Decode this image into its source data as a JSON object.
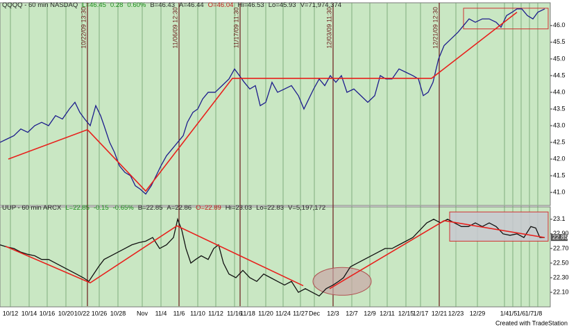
{
  "chart_data": [
    {
      "type": "line",
      "title": "QQQQ - 60 min  NASDAQ",
      "header": [
        "L=46.45",
        "0.28",
        "0.60%",
        "B=46.43",
        "A=46.44",
        "O=46.04",
        "Hi=46.53",
        "Lo=45.93",
        "V=71,974,374"
      ],
      "color": "#1c1c8c",
      "xlim": [
        0,
        793
      ],
      "ylim": [
        40.67,
        46.6
      ],
      "yticks": [
        {
          "value": 46,
          "label": "46.0"
        },
        {
          "value": 45.5,
          "label": "45.5"
        },
        {
          "value": 45,
          "label": "45.0"
        },
        {
          "value": 44.5,
          "label": "44.5"
        },
        {
          "value": 44,
          "label": "44.0"
        },
        {
          "value": 43.5,
          "label": "43.5"
        },
        {
          "value": 43,
          "label": "43.0"
        },
        {
          "value": 42.5,
          "label": "42.5"
        },
        {
          "value": 42,
          "label": "42.0"
        },
        {
          "value": 41.5,
          "label": "41.5"
        },
        {
          "value": 41,
          "label": "41.0"
        }
      ],
      "x": [
        0,
        10,
        20,
        30,
        40,
        50,
        60,
        70,
        80,
        90,
        100,
        108,
        115,
        122,
        130,
        138,
        145,
        150,
        158,
        165,
        172,
        180,
        188,
        195,
        202,
        210,
        218,
        225,
        232,
        240,
        248,
        256,
        264,
        270,
        278,
        285,
        292,
        300,
        310,
        320,
        330,
        338,
        345,
        352,
        360,
        368,
        375,
        383,
        392,
        400,
        410,
        420,
        430,
        438,
        445,
        452,
        460,
        468,
        476,
        484,
        492,
        500,
        510,
        520,
        530,
        540,
        548,
        556,
        565,
        575,
        585,
        595,
        603,
        610,
        617,
        624,
        632,
        640,
        650,
        660,
        668,
        676,
        685,
        695,
        705,
        715,
        722,
        730,
        738,
        745,
        752,
        760,
        768,
        775,
        785
      ],
      "values": [
        42.5,
        42.6,
        42.7,
        42.9,
        42.8,
        43.0,
        43.1,
        43.0,
        43.3,
        43.2,
        43.5,
        43.7,
        43.4,
        43.2,
        43.0,
        43.6,
        43.3,
        43.0,
        42.5,
        42.2,
        41.8,
        41.6,
        41.5,
        41.2,
        41.1,
        40.95,
        41.2,
        41.5,
        41.8,
        42.1,
        42.3,
        42.5,
        42.7,
        43.1,
        43.4,
        43.5,
        43.8,
        44.0,
        44.0,
        44.2,
        44.4,
        44.7,
        44.5,
        44.3,
        44.1,
        44.2,
        43.6,
        43.7,
        44.3,
        44.0,
        44.1,
        44.2,
        43.9,
        43.5,
        43.8,
        44.1,
        44.4,
        44.2,
        44.5,
        44.3,
        44.5,
        44.0,
        44.1,
        43.9,
        43.7,
        43.9,
        44.5,
        44.4,
        44.4,
        44.7,
        44.6,
        44.5,
        44.4,
        43.9,
        44.0,
        44.3,
        45.0,
        45.4,
        45.6,
        45.8,
        46.0,
        46.2,
        46.1,
        46.2,
        46.2,
        46.1,
        45.95,
        46.3,
        46.4,
        46.5,
        46.5,
        46.3,
        46.2,
        46.4,
        46.5
      ],
      "trendlines": [
        {
          "color": "#e8201c",
          "x": [
            12,
            126,
            210,
            335,
            622,
            745
          ],
          "values": [
            42.0,
            42.88,
            41.04,
            44.42,
            44.42,
            46.4
          ]
        }
      ],
      "boxes": [
        {
          "color": "#d03030",
          "x": [
            668,
            790
          ],
          "y": [
            45.9,
            46.52
          ]
        }
      ],
      "events": [
        {
          "x": 126,
          "label": "10/22/09 13:30"
        },
        {
          "x": 258,
          "label": "11/06/09 12:30"
        },
        {
          "x": 346,
          "label": "11/17/09 11:30"
        },
        {
          "x": 480,
          "label": "12/03/09 11:30"
        },
        {
          "x": 633,
          "label": "12/21/09 12:30"
        }
      ]
    },
    {
      "type": "line",
      "title": "UUP - 60 min  ARCX",
      "header": [
        "L=22.85",
        "-0.15",
        "-0.65%",
        "B=22.85",
        "A=22.86",
        "O=22.89",
        "Hi=23.03",
        "Lo=22.83",
        "V=5,197,172"
      ],
      "color": "#111111",
      "xlim": [
        0,
        793
      ],
      "ylim": [
        21.92,
        23.25
      ],
      "last_price": 22.85,
      "yticks": [
        23.1,
        {
          "value": 22.9,
          "label": "22.90"
        },
        {
          "value": 22.7,
          "label": "22.70"
        },
        {
          "value": 22.5,
          "label": "22.50"
        },
        {
          "value": 22.3,
          "label": "22.30"
        },
        {
          "value": 22.1,
          "label": "22.10"
        }
      ],
      "xticks": [
        {
          "value": 15,
          "label": "10/12"
        },
        {
          "value": 42,
          "label": "10/14"
        },
        {
          "value": 68,
          "label": "10/16"
        },
        {
          "value": 95,
          "label": "10/20"
        },
        {
          "value": 118,
          "label": "10/22"
        },
        {
          "value": 143,
          "label": "10/26"
        },
        {
          "value": 170,
          "label": "10/28"
        },
        {
          "value": 205,
          "label": "Nov"
        },
        {
          "value": 232,
          "label": "11/4"
        },
        {
          "value": 258,
          "label": "11/6"
        },
        {
          "value": 285,
          "label": "11/10"
        },
        {
          "value": 311,
          "label": "11/12"
        },
        {
          "value": 338,
          "label": "11/16"
        },
        {
          "value": 357,
          "label": "11/18"
        },
        {
          "value": 383,
          "label": "11/20"
        },
        {
          "value": 408,
          "label": "11/24"
        },
        {
          "value": 433,
          "label": "11/27"
        },
        {
          "value": 453,
          "label": "Dec"
        },
        {
          "value": 480,
          "label": "12/3"
        },
        {
          "value": 507,
          "label": "12/7"
        },
        {
          "value": 533,
          "label": "12/9"
        },
        {
          "value": 558,
          "label": "12/11"
        },
        {
          "value": 585,
          "label": "12/15"
        },
        {
          "value": 606,
          "label": "12/17"
        },
        {
          "value": 633,
          "label": "12/21"
        },
        {
          "value": 657,
          "label": "12/23"
        },
        {
          "value": 688,
          "label": "12/29"
        },
        {
          "value": 727,
          "label": "1/4"
        },
        {
          "value": 739,
          "label": "1/5"
        },
        {
          "value": 751,
          "label": "1/6"
        },
        {
          "value": 763,
          "label": "1/7"
        },
        {
          "value": 775,
          "label": "1/8"
        }
      ],
      "x": [
        0,
        10,
        20,
        30,
        40,
        50,
        60,
        70,
        80,
        90,
        100,
        110,
        120,
        128,
        135,
        142,
        150,
        160,
        170,
        180,
        190,
        200,
        210,
        220,
        230,
        240,
        250,
        256,
        262,
        268,
        275,
        282,
        290,
        300,
        308,
        315,
        322,
        330,
        340,
        350,
        360,
        370,
        380,
        390,
        400,
        410,
        420,
        430,
        440,
        450,
        460,
        470,
        480,
        488,
        495,
        505,
        515,
        525,
        535,
        545,
        555,
        565,
        575,
        585,
        595,
        605,
        615,
        625,
        635,
        645,
        655,
        665,
        675,
        685,
        695,
        705,
        715,
        725,
        735,
        745,
        755,
        765,
        772,
        778,
        785
      ],
      "values": [
        22.75,
        22.72,
        22.7,
        22.65,
        22.62,
        22.6,
        22.55,
        22.55,
        22.5,
        22.45,
        22.4,
        22.35,
        22.3,
        22.25,
        22.35,
        22.45,
        22.55,
        22.6,
        22.65,
        22.7,
        22.75,
        22.78,
        22.8,
        22.85,
        22.7,
        22.75,
        22.85,
        23.1,
        22.95,
        22.7,
        22.5,
        22.55,
        22.6,
        22.55,
        22.7,
        22.75,
        22.5,
        22.35,
        22.3,
        22.4,
        22.3,
        22.25,
        22.35,
        22.3,
        22.25,
        22.2,
        22.25,
        22.1,
        22.15,
        22.1,
        22.05,
        22.15,
        22.2,
        22.25,
        22.3,
        22.45,
        22.5,
        22.55,
        22.6,
        22.65,
        22.7,
        22.7,
        22.75,
        22.8,
        22.85,
        22.95,
        23.05,
        23.1,
        23.05,
        23.1,
        23.05,
        23.0,
        23.0,
        23.05,
        23.0,
        23.05,
        23.0,
        22.9,
        22.88,
        22.9,
        22.85,
        23.0,
        22.98,
        22.85,
        22.85
      ],
      "trendlines": [
        {
          "color": "#e8201c",
          "x": [
            8,
            130,
            255,
            437
          ],
          "values": [
            22.73,
            22.23,
            23.01,
            22.19
          ]
        },
        {
          "color": "#e8201c",
          "x": [
            475,
            640,
            785
          ],
          "values": [
            22.15,
            23.08,
            22.85
          ]
        }
      ],
      "boxes": [
        {
          "color": "#d03030",
          "x": [
            648,
            790
          ],
          "y": [
            22.8,
            23.2
          ]
        }
      ],
      "ellipse": {
        "cx": 493,
        "cy": 22.25,
        "rx": 42,
        "ry": 0.19
      }
    }
  ],
  "footer": "Created with TradeStation"
}
